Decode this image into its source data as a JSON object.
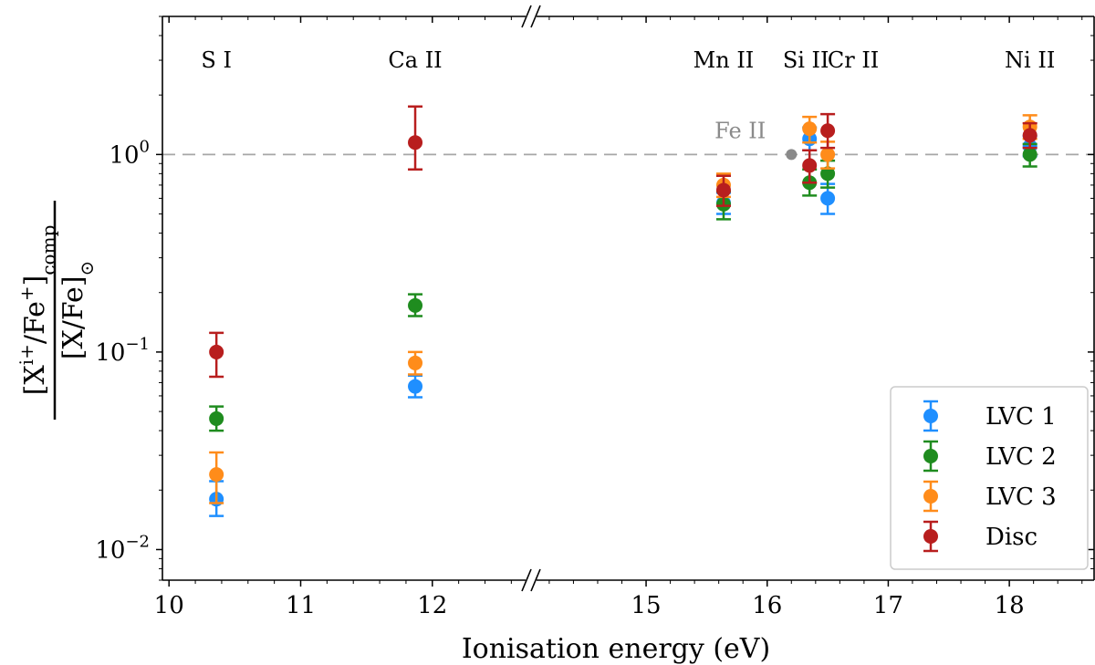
{
  "chart_data": {
    "type": "scatter",
    "title": "",
    "xlabel": "Ionisation energy (eV)",
    "ylabel": {
      "numerator_main": "[X",
      "numerator_sup": "i+",
      "numerator_mid": "/Fe",
      "numerator_sup2": "+",
      "numerator_end": "]",
      "numerator_sub": "comp",
      "denominator_main": "[X/Fe]",
      "denominator_sub": "⊙"
    },
    "yscale": "log",
    "ylim": [
      0.007,
      5.0
    ],
    "y_ticks": [
      {
        "value": 0.01,
        "base": "10",
        "exp": "−2"
      },
      {
        "value": 0.1,
        "base": "10",
        "exp": "−1"
      },
      {
        "value": 1.0,
        "base": "10",
        "exp": "0"
      }
    ],
    "x_axis_broken": true,
    "x_segments": [
      {
        "range": [
          9.95,
          12.75
        ],
        "ticks": [
          10,
          11,
          12
        ]
      },
      {
        "range": [
          14.05,
          18.7
        ],
        "ticks": [
          15,
          16,
          17,
          18
        ]
      }
    ],
    "x_tick_labels": [
      "10",
      "11",
      "12",
      "15",
      "16",
      "17",
      "18"
    ],
    "reference_line": {
      "y": 1.0,
      "style": "dashed",
      "color": "#a6a6a6"
    },
    "reference_point": {
      "label": "Fe II",
      "x": 16.2,
      "y": 1.0,
      "color": "#8a8a8a"
    },
    "species": [
      {
        "label": "S I",
        "x": 10.36
      },
      {
        "label": "Ca II",
        "x": 11.87
      },
      {
        "label": "Mn II",
        "x": 15.64
      },
      {
        "label": "Si II",
        "x": 16.35
      },
      {
        "label": "Cr II",
        "x": 16.5
      },
      {
        "label": "Ni II",
        "x": 18.17
      }
    ],
    "legend_position": "lower-right",
    "series": [
      {
        "name": "LVC 1",
        "color": "#1f8fff",
        "points": [
          {
            "x": 10.36,
            "y": 0.018,
            "lo": 0.0148,
            "hi": 0.0222
          },
          {
            "x": 11.87,
            "y": 0.067,
            "lo": 0.059,
            "hi": 0.076
          },
          {
            "x": 15.64,
            "y": 0.57,
            "lo": 0.5,
            "hi": 0.64
          },
          {
            "x": 16.35,
            "y": 1.2,
            "lo": 1.05,
            "hi": 1.37
          },
          {
            "x": 16.5,
            "y": 0.6,
            "lo": 0.5,
            "hi": 0.71
          },
          {
            "x": 18.17,
            "y": 1.1,
            "lo": 0.98,
            "hi": 1.24
          }
        ]
      },
      {
        "name": "LVC 2",
        "color": "#1f8c1f",
        "points": [
          {
            "x": 10.36,
            "y": 0.046,
            "lo": 0.04,
            "hi": 0.053
          },
          {
            "x": 11.87,
            "y": 0.172,
            "lo": 0.152,
            "hi": 0.196
          },
          {
            "x": 15.64,
            "y": 0.56,
            "lo": 0.47,
            "hi": 0.65
          },
          {
            "x": 16.35,
            "y": 0.72,
            "lo": 0.62,
            "hi": 0.84
          },
          {
            "x": 16.5,
            "y": 0.8,
            "lo": 0.68,
            "hi": 0.93
          },
          {
            "x": 18.17,
            "y": 1.0,
            "lo": 0.87,
            "hi": 1.13
          }
        ]
      },
      {
        "name": "LVC 3",
        "color": "#ff8c1a",
        "points": [
          {
            "x": 10.36,
            "y": 0.024,
            "lo": 0.0172,
            "hi": 0.031
          },
          {
            "x": 11.87,
            "y": 0.088,
            "lo": 0.077,
            "hi": 0.1
          },
          {
            "x": 15.64,
            "y": 0.7,
            "lo": 0.61,
            "hi": 0.8
          },
          {
            "x": 16.35,
            "y": 1.35,
            "lo": 1.15,
            "hi": 1.55
          },
          {
            "x": 16.5,
            "y": 1.0,
            "lo": 0.85,
            "hi": 1.16
          },
          {
            "x": 18.17,
            "y": 1.38,
            "lo": 1.2,
            "hi": 1.58
          }
        ]
      },
      {
        "name": "Disc",
        "color": "#b81e1e",
        "points": [
          {
            "x": 10.36,
            "y": 0.1,
            "lo": 0.075,
            "hi": 0.125
          },
          {
            "x": 11.87,
            "y": 1.15,
            "lo": 0.84,
            "hi": 1.75
          },
          {
            "x": 15.64,
            "y": 0.66,
            "lo": 0.55,
            "hi": 0.78
          },
          {
            "x": 16.35,
            "y": 0.88,
            "lo": 0.72,
            "hi": 1.05
          },
          {
            "x": 16.5,
            "y": 1.32,
            "lo": 1.08,
            "hi": 1.6
          },
          {
            "x": 18.17,
            "y": 1.25,
            "lo": 1.08,
            "hi": 1.44
          }
        ]
      }
    ]
  }
}
